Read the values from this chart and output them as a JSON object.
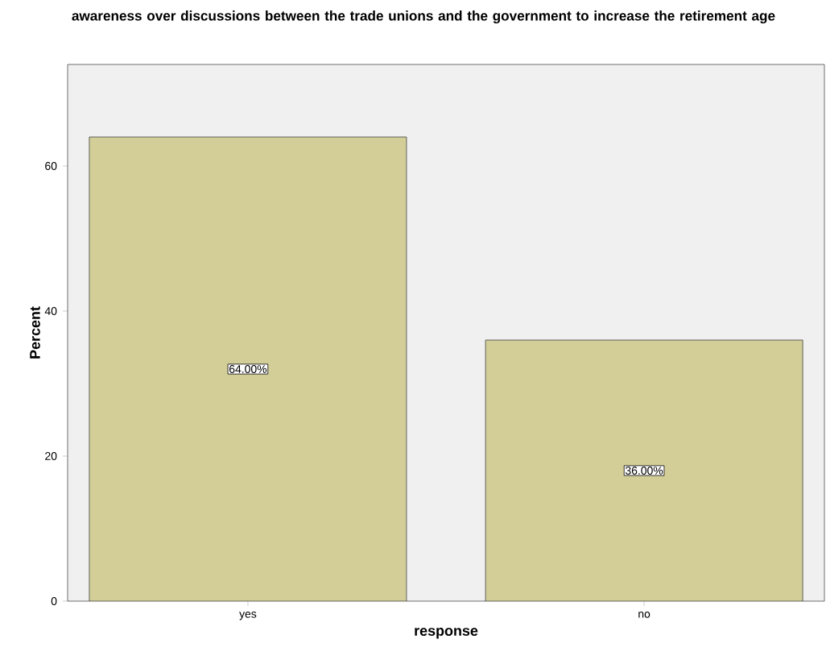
{
  "chart_data": {
    "type": "bar",
    "title": "awareness over discussions between the trade unions and the government to increase the retirement age",
    "xlabel": "response",
    "ylabel": "Percent",
    "categories": [
      "yes",
      "no"
    ],
    "values": [
      64,
      36
    ],
    "value_labels": [
      "64.00%",
      "36.00%"
    ],
    "color": "#d3ce98",
    "ylim": [
      0,
      74
    ],
    "yticks": [
      0,
      20,
      40,
      60
    ]
  }
}
